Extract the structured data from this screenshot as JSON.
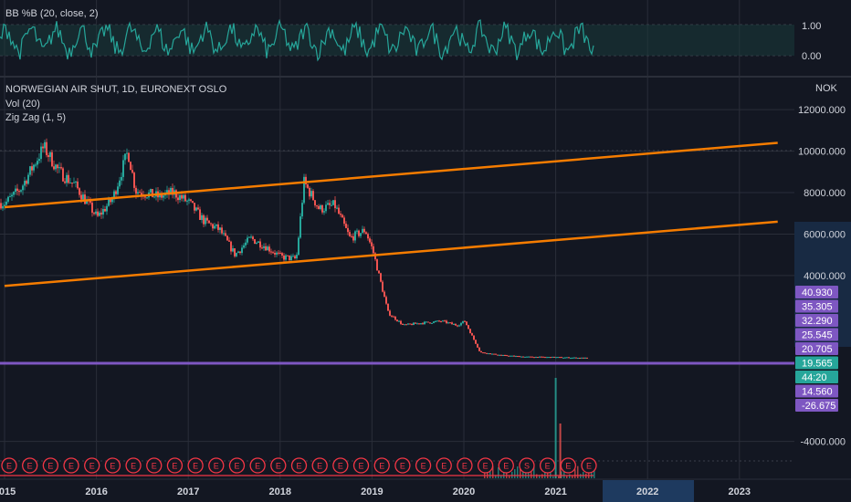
{
  "chart_data": {
    "type": "line",
    "bb_panel": {
      "title": "BB %B (20, close, 2)",
      "ticks": [
        "1.00",
        "0.00"
      ],
      "ylim": [
        -0.25,
        1.25
      ],
      "line_color": "#26a69a"
    },
    "price_panel": {
      "title": "NORWEGIAN AIR SHUT, 1D, EURONEXT OSLO",
      "indicators": [
        "Vol (20)",
        "Zig Zag (1, 5)"
      ],
      "currency": "NOK",
      "y_ticks": [
        "12000.000",
        "10000.000",
        "8000.000",
        "6000.000",
        "4000.000",
        "-4000.000"
      ],
      "ylim": [
        -5600,
        12800
      ],
      "x_labels": [
        "2015",
        "2016",
        "2017",
        "2018",
        "2019",
        "2020",
        "2021",
        "2022",
        "2023"
      ],
      "highlighted_x": [
        "2022",
        "2023"
      ],
      "series": [
        {
          "x": [
            "2015-01",
            "2015-03",
            "2015-06",
            "2015-08",
            "2015-10",
            "2016-01",
            "2016-03",
            "2016-05",
            "2016-06",
            "2016-09",
            "2016-11",
            "2017-01",
            "2017-03",
            "2017-05",
            "2017-07",
            "2017-09",
            "2017-11",
            "2018-01",
            "2018-03",
            "2018-04",
            "2018-06",
            "2018-08",
            "2018-10",
            "2018-12",
            "2019-01",
            "2019-03",
            "2019-05",
            "2019-07",
            "2019-10",
            "2019-12",
            "2020-01",
            "2020-03",
            "2020-06",
            "2020-09",
            "2021-01",
            "2021-05"
          ],
          "y": [
            7500,
            8200,
            10200,
            9000,
            8400,
            6800,
            7700,
            10000,
            8100,
            7800,
            8000,
            7500,
            6600,
            6200,
            5000,
            5800,
            5400,
            4900,
            4800,
            8500,
            7200,
            7400,
            5800,
            6200,
            5200,
            2200,
            1600,
            1700,
            1800,
            1600,
            1800,
            300,
            150,
            80,
            60,
            20
          ]
        }
      ],
      "channel_lines": [
        {
          "color": "#f57c00",
          "x": [
            "2015-01",
            "2023-06"
          ],
          "y": [
            7300,
            10400
          ]
        },
        {
          "color": "#f57c00",
          "x": [
            "2015-01",
            "2023-06"
          ],
          "y": [
            3500,
            6600
          ]
        }
      ],
      "hline": {
        "value": 19.565,
        "color": "#7e57c2"
      },
      "volume_spike": {
        "x": "2021-01",
        "height_ratio": 1
      },
      "price_tags": [
        {
          "text": "40.930",
          "color": "#7e57c2"
        },
        {
          "text": "35.305",
          "color": "#7e57c2"
        },
        {
          "text": "32.290",
          "color": "#7e57c2"
        },
        {
          "text": "25.545",
          "color": "#7e57c2"
        },
        {
          "text": "20.705",
          "color": "#7e57c2"
        },
        {
          "text": "19.565",
          "color": "#26a69a"
        },
        {
          "text": "44:20",
          "color": "#26a69a"
        },
        {
          "text": "14.560",
          "color": "#7e57c2"
        },
        {
          "text": "-26.675",
          "color": "#7e57c2"
        }
      ],
      "event_marker": "E",
      "event_marker_s": "S",
      "events_count": 29
    }
  },
  "colors": {
    "background": "#131722",
    "grid": "#2a2e39",
    "up": "#26a69a",
    "down": "#ef5350",
    "channel": "#f57c00",
    "hline": "#7e57c2"
  }
}
